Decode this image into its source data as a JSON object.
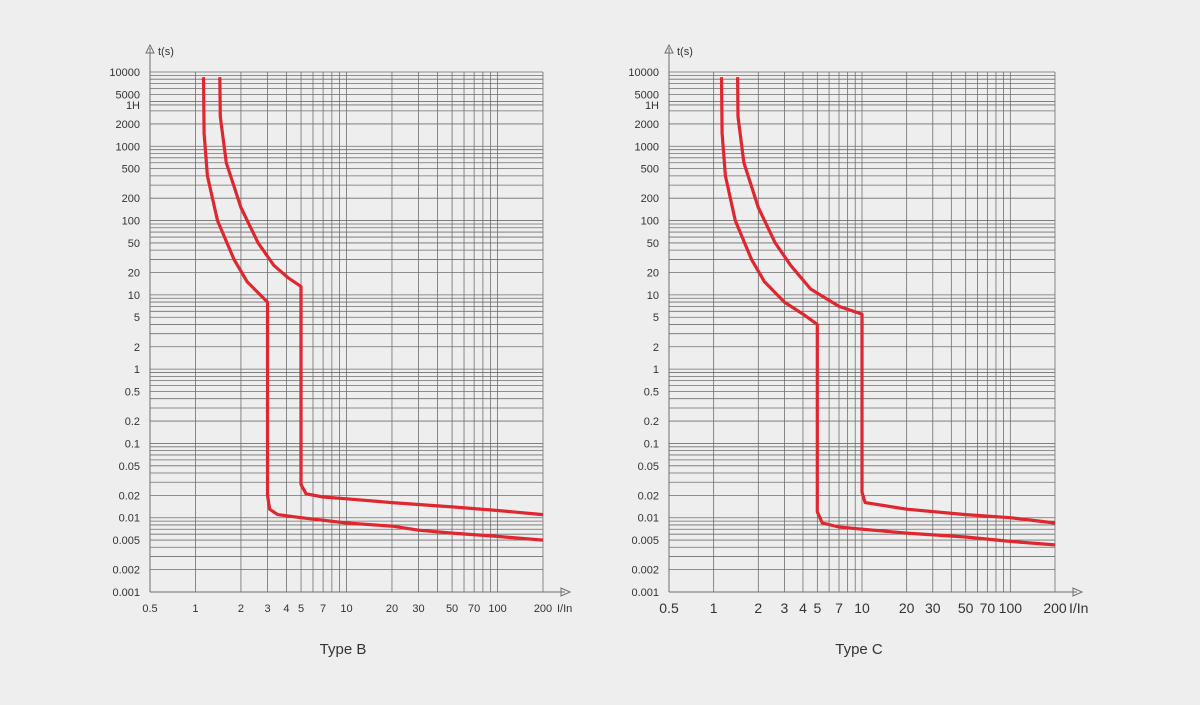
{
  "colors": {
    "background": "#eeeeee",
    "grid": "#6f6f6f",
    "curve": "#e0262e",
    "text": "#333333"
  },
  "chart_data": [
    {
      "type": "line",
      "title": "Type B",
      "ylabel": "t(s)",
      "xlabel": "I/In",
      "xscale": "log",
      "yscale": "log",
      "xlim": [
        0.5,
        200
      ],
      "ylim": [
        0.001,
        10000
      ],
      "grid": true,
      "xticks": [
        {
          "value": 0.5,
          "label": "0.5"
        },
        {
          "value": 1,
          "label": "1"
        },
        {
          "value": 2,
          "label": "2"
        },
        {
          "value": 3,
          "label": "3"
        },
        {
          "value": 4,
          "label": "4"
        },
        {
          "value": 5,
          "label": "5"
        },
        {
          "value": 7,
          "label": "7"
        },
        {
          "value": 10,
          "label": "10"
        },
        {
          "value": 20,
          "label": "20"
        },
        {
          "value": 30,
          "label": "30"
        },
        {
          "value": 50,
          "label": "50"
        },
        {
          "value": 70,
          "label": "70"
        },
        {
          "value": 100,
          "label": "100"
        },
        {
          "value": 200,
          "label": "200"
        }
      ],
      "yticks": [
        {
          "value": 10000,
          "label": "10000"
        },
        {
          "value": 5000,
          "label": "5000"
        },
        {
          "value": 3600,
          "label": "1H"
        },
        {
          "value": 2000,
          "label": "2000"
        },
        {
          "value": 1000,
          "label": "1000"
        },
        {
          "value": 500,
          "label": "500"
        },
        {
          "value": 200,
          "label": "200"
        },
        {
          "value": 100,
          "label": "100"
        },
        {
          "value": 50,
          "label": "50"
        },
        {
          "value": 20,
          "label": "20"
        },
        {
          "value": 10,
          "label": "10"
        },
        {
          "value": 5,
          "label": "5"
        },
        {
          "value": 2,
          "label": "2"
        },
        {
          "value": 1,
          "label": "1"
        },
        {
          "value": 0.5,
          "label": "0.5"
        },
        {
          "value": 0.2,
          "label": "0.2"
        },
        {
          "value": 0.1,
          "label": "0.1"
        },
        {
          "value": 0.05,
          "label": "0.05"
        },
        {
          "value": 0.02,
          "label": "0.02"
        },
        {
          "value": 0.01,
          "label": "0.01"
        },
        {
          "value": 0.005,
          "label": "0.005"
        },
        {
          "value": 0.002,
          "label": "0.002"
        },
        {
          "value": 0.001,
          "label": "0.001"
        }
      ],
      "series": [
        {
          "points": [
            [
              1.13,
              8500
            ],
            [
              1.14,
              1500
            ],
            [
              1.2,
              400
            ],
            [
              1.4,
              100
            ],
            [
              1.8,
              30
            ],
            [
              2.2,
              15
            ],
            [
              3.0,
              8
            ],
            [
              3.0,
              0.02
            ],
            [
              3.1,
              0.013
            ],
            [
              3.5,
              0.011
            ],
            [
              5,
              0.01
            ],
            [
              10,
              0.0085
            ],
            [
              20,
              0.0077
            ],
            [
              30,
              0.0068
            ],
            [
              50,
              0.0062
            ],
            [
              100,
              0.0056
            ],
            [
              200,
              0.005
            ]
          ]
        },
        {
          "points": [
            [
              1.45,
              8500
            ],
            [
              1.46,
              2500
            ],
            [
              1.6,
              600
            ],
            [
              2.0,
              150
            ],
            [
              2.6,
              50
            ],
            [
              3.3,
              25
            ],
            [
              4.1,
              17
            ],
            [
              5.0,
              13
            ],
            [
              5.0,
              0.028
            ],
            [
              5.4,
              0.021
            ],
            [
              7,
              0.019
            ],
            [
              10,
              0.018
            ],
            [
              20,
              0.016
            ],
            [
              50,
              0.014
            ],
            [
              100,
              0.0125
            ],
            [
              200,
              0.011
            ]
          ]
        }
      ]
    },
    {
      "type": "line",
      "title": "Type C",
      "ylabel": "t(s)",
      "xlabel": "I/In",
      "xscale": "log",
      "yscale": "log",
      "xlim": [
        0.5,
        200
      ],
      "ylim": [
        0.001,
        10000
      ],
      "grid": true,
      "xticks": [
        {
          "value": 0.5,
          "label": "0.5"
        },
        {
          "value": 1,
          "label": "1"
        },
        {
          "value": 2,
          "label": "2"
        },
        {
          "value": 3,
          "label": "3"
        },
        {
          "value": 4,
          "label": "4"
        },
        {
          "value": 5,
          "label": "5"
        },
        {
          "value": 7,
          "label": "7"
        },
        {
          "value": 10,
          "label": "10"
        },
        {
          "value": 20,
          "label": "20"
        },
        {
          "value": 30,
          "label": "30"
        },
        {
          "value": 50,
          "label": "50"
        },
        {
          "value": 70,
          "label": "70"
        },
        {
          "value": 100,
          "label": "100"
        },
        {
          "value": 200,
          "label": "200"
        }
      ],
      "yticks": [
        {
          "value": 10000,
          "label": "10000"
        },
        {
          "value": 5000,
          "label": "5000"
        },
        {
          "value": 3600,
          "label": "1H"
        },
        {
          "value": 2000,
          "label": "2000"
        },
        {
          "value": 1000,
          "label": "1000"
        },
        {
          "value": 500,
          "label": "500"
        },
        {
          "value": 200,
          "label": "200"
        },
        {
          "value": 100,
          "label": "100"
        },
        {
          "value": 50,
          "label": "50"
        },
        {
          "value": 20,
          "label": "20"
        },
        {
          "value": 10,
          "label": "10"
        },
        {
          "value": 5,
          "label": "5"
        },
        {
          "value": 2,
          "label": "2"
        },
        {
          "value": 1,
          "label": "1"
        },
        {
          "value": 0.5,
          "label": "0.5"
        },
        {
          "value": 0.2,
          "label": "0.2"
        },
        {
          "value": 0.1,
          "label": "0.1"
        },
        {
          "value": 0.05,
          "label": "0.05"
        },
        {
          "value": 0.02,
          "label": "0.02"
        },
        {
          "value": 0.01,
          "label": "0.01"
        },
        {
          "value": 0.005,
          "label": "0.005"
        },
        {
          "value": 0.002,
          "label": "0.002"
        },
        {
          "value": 0.001,
          "label": "0.001"
        }
      ],
      "series": [
        {
          "points": [
            [
              1.13,
              8500
            ],
            [
              1.14,
              1500
            ],
            [
              1.2,
              400
            ],
            [
              1.4,
              100
            ],
            [
              1.8,
              30
            ],
            [
              2.2,
              15
            ],
            [
              3.0,
              8
            ],
            [
              4.0,
              5.5
            ],
            [
              5.0,
              4
            ],
            [
              5.0,
              0.012
            ],
            [
              5.4,
              0.0085
            ],
            [
              7,
              0.0075
            ],
            [
              10,
              0.007
            ],
            [
              20,
              0.0062
            ],
            [
              50,
              0.0055
            ],
            [
              100,
              0.0048
            ],
            [
              200,
              0.0043
            ]
          ]
        },
        {
          "points": [
            [
              1.45,
              8500
            ],
            [
              1.46,
              2500
            ],
            [
              1.6,
              600
            ],
            [
              2.0,
              150
            ],
            [
              2.6,
              50
            ],
            [
              3.3,
              25
            ],
            [
              4.5,
              12
            ],
            [
              7,
              7
            ],
            [
              10,
              5.5
            ],
            [
              10,
              0.022
            ],
            [
              10.5,
              0.016
            ],
            [
              20,
              0.013
            ],
            [
              50,
              0.011
            ],
            [
              100,
              0.01
            ],
            [
              200,
              0.0085
            ]
          ]
        }
      ]
    }
  ]
}
